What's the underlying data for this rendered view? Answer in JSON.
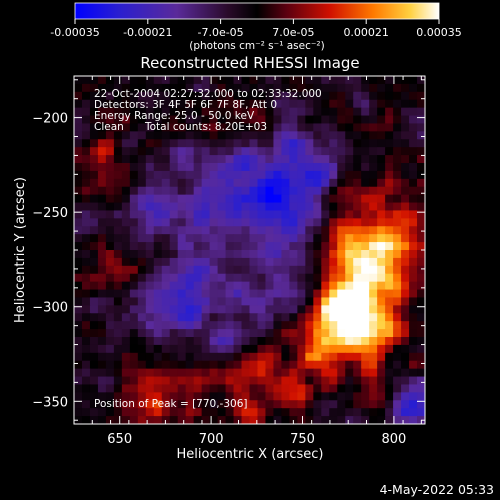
{
  "chart_data": {
    "type": "heatmap",
    "title": "Reconstructed RHESSI Image",
    "xlabel": "Heliocentric X (arcsec)",
    "ylabel": "Heliocentric Y (arcsec)",
    "xlim": [
      625,
      817
    ],
    "ylim": [
      -362,
      -178
    ],
    "xticks": [
      650,
      700,
      750,
      800
    ],
    "yticks": [
      -200,
      -250,
      -300,
      -350
    ],
    "colorbar": {
      "min": -0.00035,
      "max": 0.00035,
      "ticks": [
        "-0.00035",
        "-0.00021",
        "-7.0e-05",
        "7.0e-05",
        "0.00021",
        "0.00035"
      ],
      "tick_values": [
        -0.00035,
        -0.00021,
        -7e-05,
        7e-05,
        0.00021,
        0.00035
      ],
      "units_label": "(photons cm⁻² s⁻¹ asec⁻²)"
    },
    "annotations": {
      "time_range": "22-Oct-2004 02:27:32.000 to 02:33:32.000",
      "detectors": "Detectors: 3F 4F 5F 6F 7F 8F, Att 0",
      "energy_range": "Energy Range: 25.0 - 50.0 keV",
      "clean": "Clean",
      "total_counts": "Total counts: 8.20E+03",
      "peak_position": "Position of Peak = [770,-306]"
    },
    "peak": {
      "x": 770,
      "y": -306
    },
    "grid": false
  },
  "footer": {
    "date": "4-May-2022 05:33"
  }
}
